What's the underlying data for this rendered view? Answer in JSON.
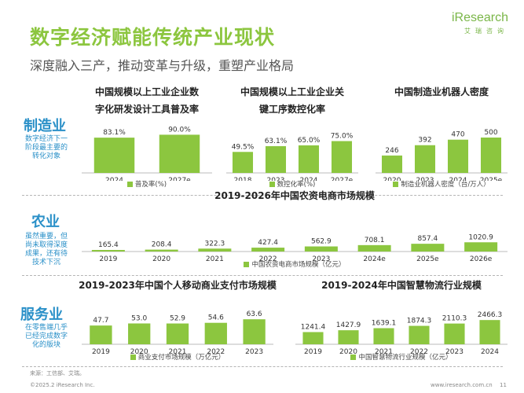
{
  "header": {
    "title": "数字经济赋能传统产业现状",
    "subtitle": "深度融入三产，推动变革与升级，重塑产业格局",
    "brand_name": "iResearch",
    "brand_sub": "艾瑞咨询"
  },
  "sectors": {
    "manufacturing": {
      "label": "制造业",
      "desc": "数字经济下一阶段最主要的转化对象"
    },
    "agriculture": {
      "label": "农业",
      "desc": "虽然重要，但尚未取得深度成果，还有待技术下沉"
    },
    "services": {
      "label": "服务业",
      "desc": "在零售端几乎已经完成数字化的版块"
    }
  },
  "footer": {
    "source": "来源：工信部、艾瑞。",
    "copyright": "©2025.2 iResearch Inc.",
    "url": "www.iresearch.com.cn",
    "page": "11"
  },
  "colors": {
    "bar": "#8cc63f",
    "accent": "#8cc63f",
    "sector": "#2a90c8"
  },
  "chart_data": [
    {
      "id": "c1",
      "type": "bar",
      "title": "中国规模以上工业企业数字化研发设计工具普及率",
      "title_lines": [
        "中国规模以上工业企业数",
        "字化研发设计工具普及率"
      ],
      "categories": [
        "2024",
        "2027e"
      ],
      "values": [
        83.1,
        90.0
      ],
      "labels": [
        "83.1%",
        "90.0%"
      ],
      "series": [
        {
          "name": "普及率(%)",
          "values": [
            83.1,
            90.0
          ]
        }
      ],
      "ylim": [
        0,
        100
      ]
    },
    {
      "id": "c2",
      "type": "bar",
      "title": "中国规模以上工业企业关键工序数控化率",
      "title_lines": [
        "中国规模以上工业企业关",
        "键工序数控化率"
      ],
      "categories": [
        "2018",
        "2023",
        "2024",
        "2027e"
      ],
      "values": [
        49.5,
        63.1,
        65.0,
        75.0
      ],
      "labels": [
        "49.5%",
        "63.1%",
        "65.0%",
        "75.0%"
      ],
      "series": [
        {
          "name": "数控化率(%)",
          "values": [
            49.5,
            63.1,
            65.0,
            75.0
          ]
        }
      ],
      "ylim": [
        0,
        100
      ]
    },
    {
      "id": "c3",
      "type": "bar",
      "title": "中国制造业机器人密度",
      "title_lines": [
        "中国制造业机器人密度"
      ],
      "categories": [
        "2020",
        "2023",
        "2024",
        "2025e"
      ],
      "values": [
        246,
        392,
        470,
        500
      ],
      "labels": [
        "246",
        "392",
        "470",
        "500"
      ],
      "series": [
        {
          "name": "制造业机器人密度（台/万人）",
          "values": [
            246,
            392,
            470,
            500
          ]
        }
      ],
      "ylim": [
        0,
        600
      ]
    },
    {
      "id": "c4",
      "type": "bar",
      "title": "2019-2026年中国农资电商市场规模",
      "title_lines": [
        "2019-2026年中国农资电商市场规模"
      ],
      "categories": [
        "2019",
        "2020",
        "2021",
        "2022",
        "2023",
        "2024e",
        "2025e",
        "2026e"
      ],
      "values": [
        165.4,
        208.4,
        322.3,
        427.4,
        562.9,
        708.1,
        857.4,
        1020.9
      ],
      "labels": [
        "165.4",
        "208.4",
        "322.3",
        "427.4",
        "562.9",
        "708.1",
        "857.4",
        "1020.9"
      ],
      "series": [
        {
          "name": "中国农资电商市场规模（亿元）",
          "values": [
            165.4,
            208.4,
            322.3,
            427.4,
            562.9,
            708.1,
            857.4,
            1020.9
          ]
        }
      ],
      "ylim": [
        0,
        4000
      ]
    },
    {
      "id": "c5",
      "type": "bar",
      "title": "2019-2023年中国个人移动商业支付市场规模",
      "title_lines": [
        "2019-2023年中国个人移动商业支付市场规模"
      ],
      "categories": [
        "2019",
        "2020",
        "2021",
        "2022",
        "2023"
      ],
      "values": [
        47.7,
        53.0,
        52.9,
        54.6,
        63.6
      ],
      "labels": [
        "47.7",
        "53.0",
        "52.9",
        "54.6",
        "63.6"
      ],
      "series": [
        {
          "name": "商业支付市场规模（万亿元）",
          "values": [
            47.7,
            53.0,
            52.9,
            54.6,
            63.6
          ]
        }
      ],
      "ylim": [
        0,
        100
      ]
    },
    {
      "id": "c6",
      "type": "bar",
      "title": "2019-2024年中国智慧物流行业规模",
      "title_lines": [
        "2019-2024年中国智慧物流行业规模"
      ],
      "categories": [
        "2019",
        "2020",
        "2021",
        "2022",
        "2023",
        "2024"
      ],
      "values": [
        1241.4,
        1427.9,
        1639.1,
        1874.3,
        2110.3,
        2466.3
      ],
      "labels": [
        "1241.4",
        "1427.9",
        "1639.1",
        "1874.3",
        "2110.3",
        "2466.3"
      ],
      "series": [
        {
          "name": "中国智慧物流行业规模（亿元）",
          "values": [
            1241.4,
            1427.9,
            1639.1,
            1874.3,
            2110.3,
            2466.3
          ]
        }
      ],
      "ylim": [
        0,
        4000
      ]
    }
  ]
}
